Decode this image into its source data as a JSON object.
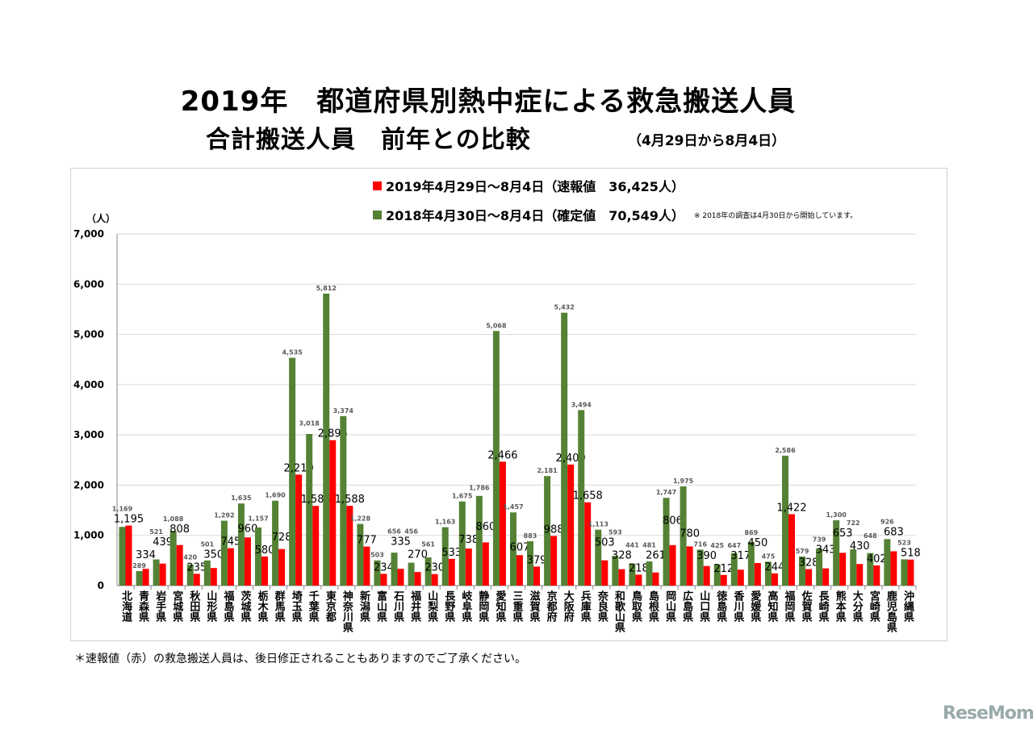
{
  "title_line1": "2019年　都道府県別熱中症による救急搬送人員",
  "title_line2": "合計搬送人員　前年との比較",
  "period": "（4月29日から8月4日）",
  "footnote": "＊速報値（赤）の救急搬送人員は、後日修正されることもありますのでご了承ください。",
  "brand": "ReseMom",
  "chart_data": {
    "type": "bar",
    "ylabel": "（人）",
    "ylim": [
      0,
      7000
    ],
    "yticks": [
      "0",
      "1,000",
      "2,000",
      "3,000",
      "4,000",
      "5,000",
      "6,000",
      "7,000"
    ],
    "grid": true,
    "legend_placement": "top",
    "note": "※ 2018年の調査は4月30日から開始しています。",
    "categories": [
      "北海道",
      "青森県",
      "岩手県",
      "宮城県",
      "秋田県",
      "山形県",
      "福島県",
      "茨城県",
      "栃木県",
      "群馬県",
      "埼玉県",
      "千葉県",
      "東京都",
      "神奈川県",
      "新潟県",
      "富山県",
      "石川県",
      "福井県",
      "山梨県",
      "長野県",
      "岐阜県",
      "静岡県",
      "愛知県",
      "三重県",
      "滋賀県",
      "京都府",
      "大阪府",
      "兵庫県",
      "奈良県",
      "和歌山県",
      "鳥取県",
      "島根県",
      "岡山県",
      "広島県",
      "山口県",
      "徳島県",
      "香川県",
      "愛媛県",
      "高知県",
      "福岡県",
      "佐賀県",
      "長崎県",
      "熊本県",
      "大分県",
      "宮崎県",
      "鹿児島県",
      "沖縄県"
    ],
    "series": [
      {
        "name": "2018年4月30日～8月4日（確定値　70,549人）",
        "color": "#548235",
        "values": [
          1169,
          289,
          521,
          1088,
          420,
          501,
          1292,
          1635,
          1157,
          1690,
          4535,
          3018,
          5812,
          3374,
          1228,
          503,
          656,
          456,
          561,
          1163,
          1675,
          1786,
          5068,
          1457,
          883,
          2181,
          5432,
          3494,
          1113,
          593,
          441,
          481,
          1747,
          1975,
          716,
          425,
          647,
          869,
          475,
          2586,
          579,
          739,
          1300,
          722,
          648,
          926,
          523
        ]
      },
      {
        "name": "2019年4月29日～8月4日（速報値　36,425人）",
        "color": "#ff0000",
        "values": [
          1195,
          334,
          439,
          808,
          235,
          350,
          745,
          960,
          580,
          728,
          2210,
          1586,
          2895,
          1588,
          777,
          234,
          335,
          270,
          230,
          533,
          738,
          860,
          2466,
          607,
          379,
          988,
          2409,
          1658,
          503,
          328,
          218,
          261,
          806,
          780,
          390,
          212,
          317,
          450,
          244,
          1422,
          328,
          343,
          653,
          430,
          402,
          683,
          518
        ]
      }
    ]
  }
}
